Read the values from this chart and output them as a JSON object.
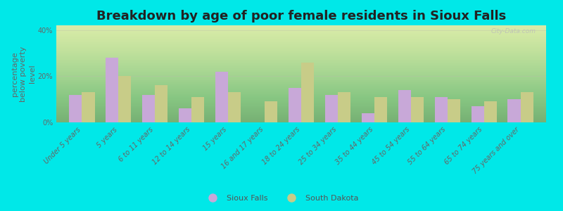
{
  "title": "Breakdown by age of poor female residents in Sioux Falls",
  "ylabel": "percentage\nbelow poverty\nlevel",
  "categories": [
    "Under 5 years",
    "5 years",
    "6 to 11 years",
    "12 to 14 years",
    "15 years",
    "16 and 17 years",
    "18 to 24 years",
    "25 to 34 years",
    "35 to 44 years",
    "45 to 54 years",
    "55 to 64 years",
    "65 to 74 years",
    "75 years and over"
  ],
  "sioux_falls": [
    12,
    28,
    12,
    6,
    22,
    0,
    15,
    12,
    4,
    14,
    11,
    7,
    10
  ],
  "south_dakota": [
    13,
    20,
    16,
    11,
    13,
    9,
    26,
    13,
    11,
    11,
    10,
    9,
    13
  ],
  "sioux_falls_color": "#c8a8d8",
  "south_dakota_color": "#c8cc88",
  "background_color": "#00e8e8",
  "bar_width": 0.35,
  "ylim": [
    0,
    42
  ],
  "yticks": [
    0,
    20,
    40
  ],
  "ytick_labels": [
    "0%",
    "20%",
    "40%"
  ],
  "title_fontsize": 13,
  "axis_label_fontsize": 8,
  "tick_fontsize": 7,
  "legend_labels": [
    "Sioux Falls",
    "South Dakota"
  ],
  "watermark": "City-Data.com"
}
